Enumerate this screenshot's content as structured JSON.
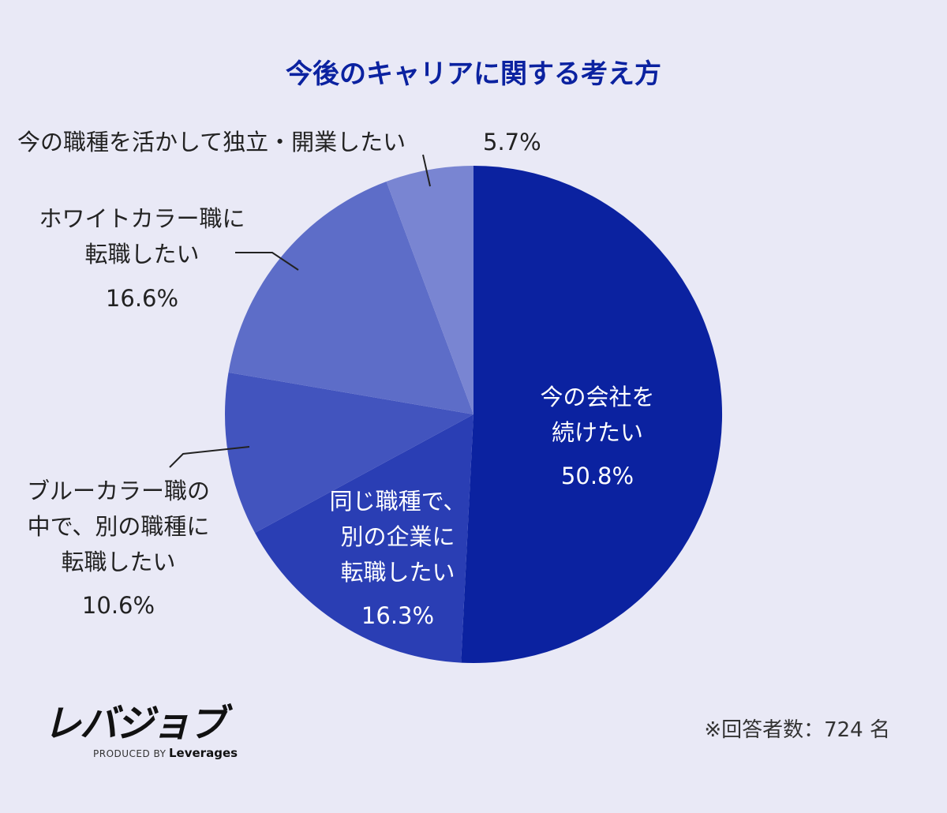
{
  "chart_data": {
    "type": "pie",
    "title": "今後のキャリアに関する考え方",
    "unit": "%",
    "slices": [
      {
        "lines": [
          "今の会社を",
          "続けたい"
        ],
        "value": 50.8,
        "value_label": "50.8%",
        "color": "#0b22a0"
      },
      {
        "lines": [
          "同じ職種で、",
          "別の企業に",
          "転職したい"
        ],
        "value": 16.3,
        "value_label": "16.3%",
        "color": "#2a3eb4"
      },
      {
        "lines": [
          "ブルーカラー職の",
          "中で、別の職種に",
          "転職したい"
        ],
        "value": 10.6,
        "value_label": "10.6%",
        "color": "#4254be"
      },
      {
        "lines": [
          "ホワイトカラー職に",
          "転職したい"
        ],
        "value": 16.6,
        "value_label": "16.6%",
        "color": "#5d6dc8"
      },
      {
        "lines": [
          "今の職種を活かして独立・開業したい"
        ],
        "value": 5.7,
        "value_label": "5.7%",
        "color": "#7985d2"
      }
    ]
  },
  "style": {
    "title_color": "#0b22a0"
  },
  "footer": {
    "logo_text": "レバジョブ",
    "produced_by": "PRODUCED BY",
    "produced_brand": "Leverages",
    "respondents": "※回答者数：724 名"
  }
}
